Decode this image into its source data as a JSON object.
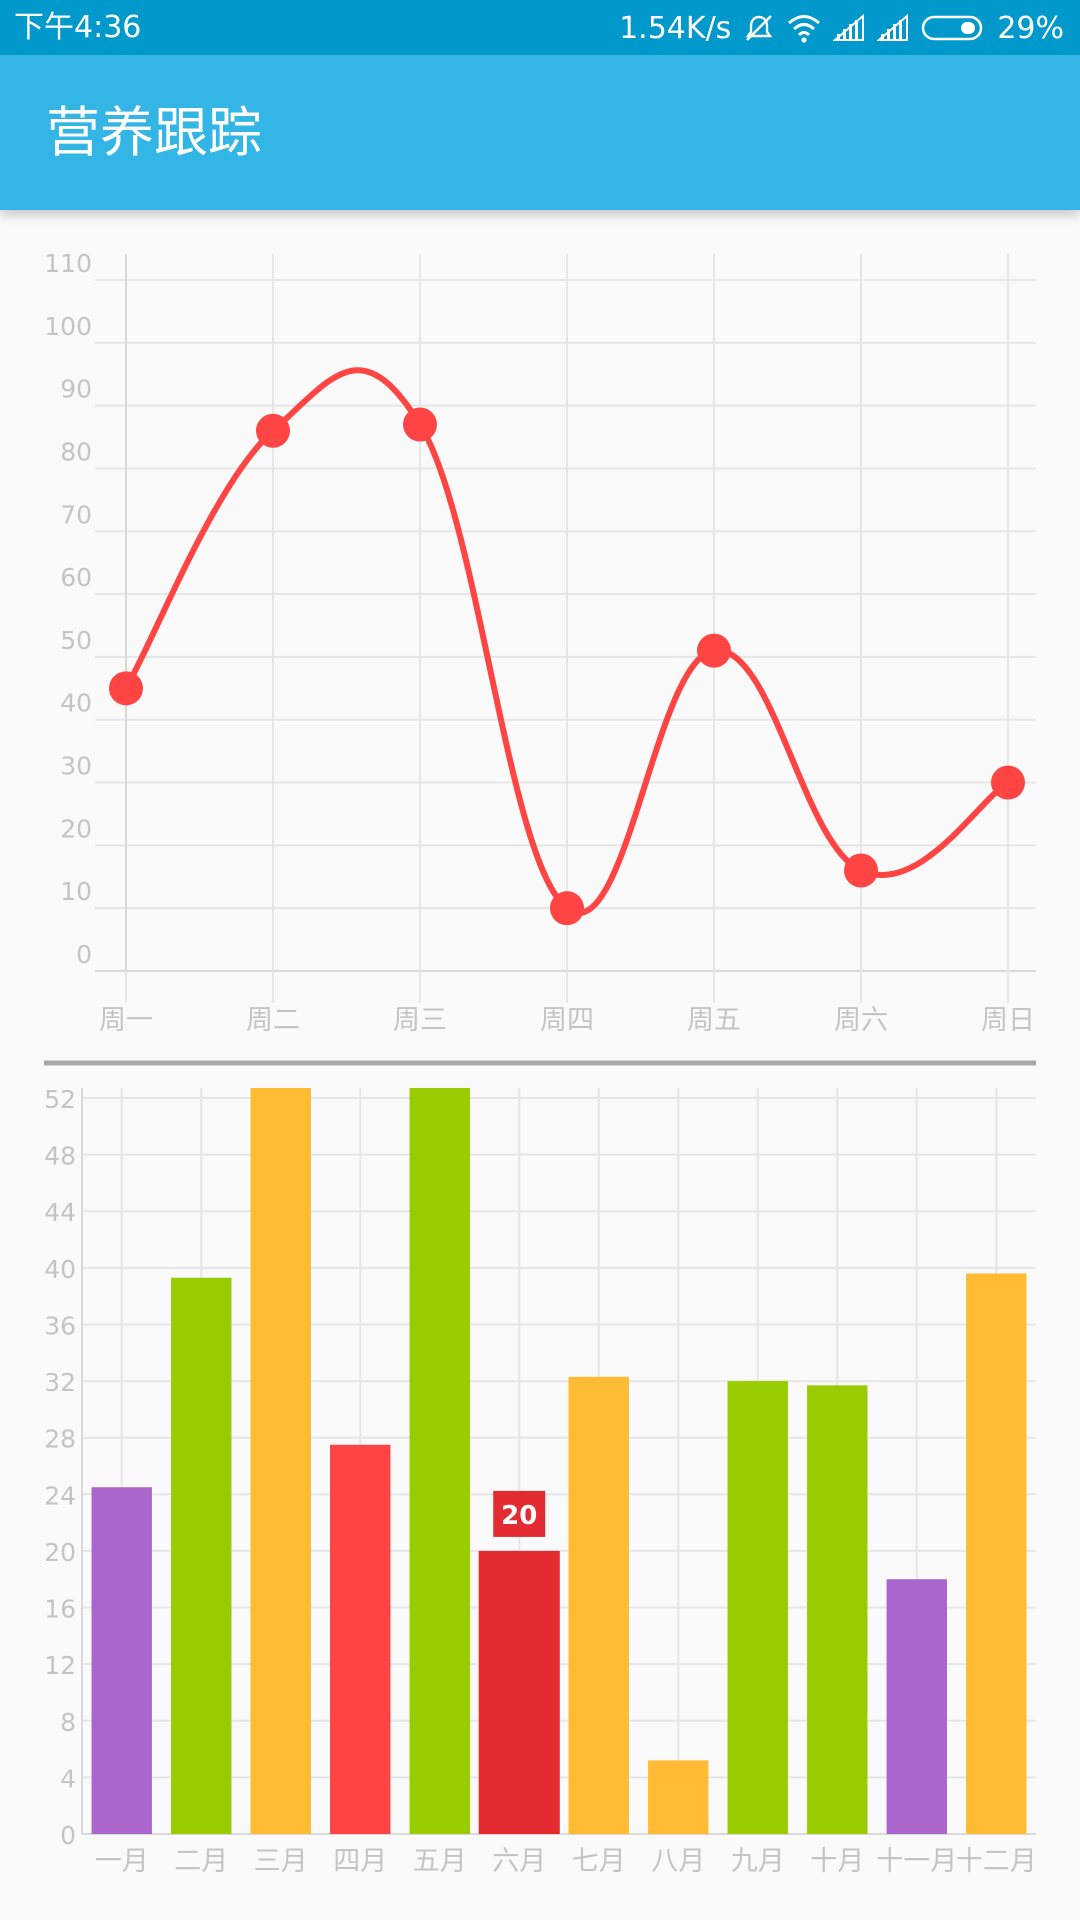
{
  "status_bar": {
    "time": "下午4:36",
    "net_speed": "1.54K/s",
    "battery": "29%",
    "icons": [
      "mute-icon",
      "wifi-icon",
      "signal-icon",
      "signal-icon",
      "battery-icon"
    ]
  },
  "app_bar": {
    "title": "营养跟踪",
    "color": "#33b5e5",
    "status_color": "#0199cc"
  },
  "chart_data": [
    {
      "type": "line",
      "categories": [
        "周一",
        "周二",
        "周三",
        "周四",
        "周五",
        "周六",
        "周日"
      ],
      "series": [
        {
          "values": [
            45,
            86,
            87,
            10,
            51,
            16,
            30
          ],
          "color": "#ff4444"
        }
      ],
      "ylim": [
        0,
        110
      ],
      "yticks": [
        0,
        10,
        20,
        30,
        40,
        50,
        60,
        70,
        80,
        90,
        100,
        110
      ],
      "smooth": true,
      "grid": true
    },
    {
      "type": "bar",
      "categories": [
        "一月",
        "二月",
        "三月",
        "四月",
        "五月",
        "六月",
        "七月",
        "八月",
        "九月",
        "十月",
        "十一月",
        "十二月"
      ],
      "values": [
        24.5,
        39.3,
        53.3,
        27.5,
        53.7,
        20,
        32.3,
        5.2,
        32.0,
        31.7,
        18.0,
        39.6
      ],
      "colors": [
        "#aa66cc",
        "#99cc00",
        "#ffbb33",
        "#ff4444",
        "#99cc00",
        "#e52b32",
        "#ffbb33",
        "#ffbb33",
        "#99cc00",
        "#99cc00",
        "#aa66cc",
        "#ffbb33"
      ],
      "ylim": [
        0,
        52
      ],
      "yticks": [
        0,
        4,
        8,
        12,
        16,
        20,
        24,
        28,
        32,
        36,
        40,
        44,
        48,
        52
      ],
      "highlighted_index": 5,
      "highlighted_label": "20",
      "grid": true
    }
  ]
}
